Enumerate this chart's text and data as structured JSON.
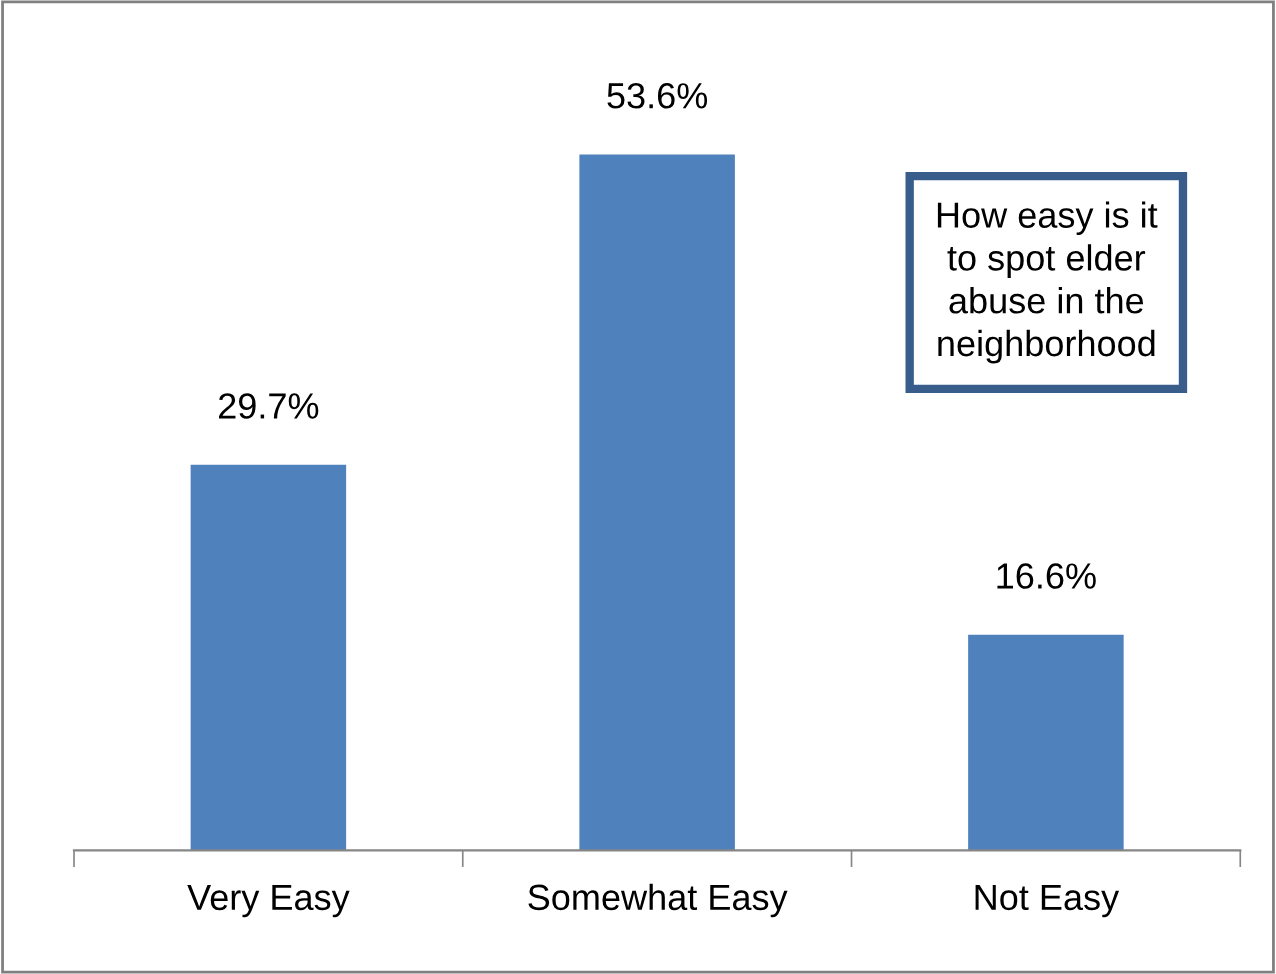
{
  "chart_data": {
    "type": "bar",
    "title": "How easy is it\nto spot elder\nabuse in the\nneighborhood",
    "categories": [
      "Very Easy",
      "Somewhat Easy",
      "Not Easy"
    ],
    "values": [
      29.7,
      53.6,
      16.6
    ],
    "color": "#4f81bd",
    "value_labels": [
      "29.7%",
      "53.6%",
      "16.6%"
    ],
    "grid": false,
    "legend": false
  }
}
